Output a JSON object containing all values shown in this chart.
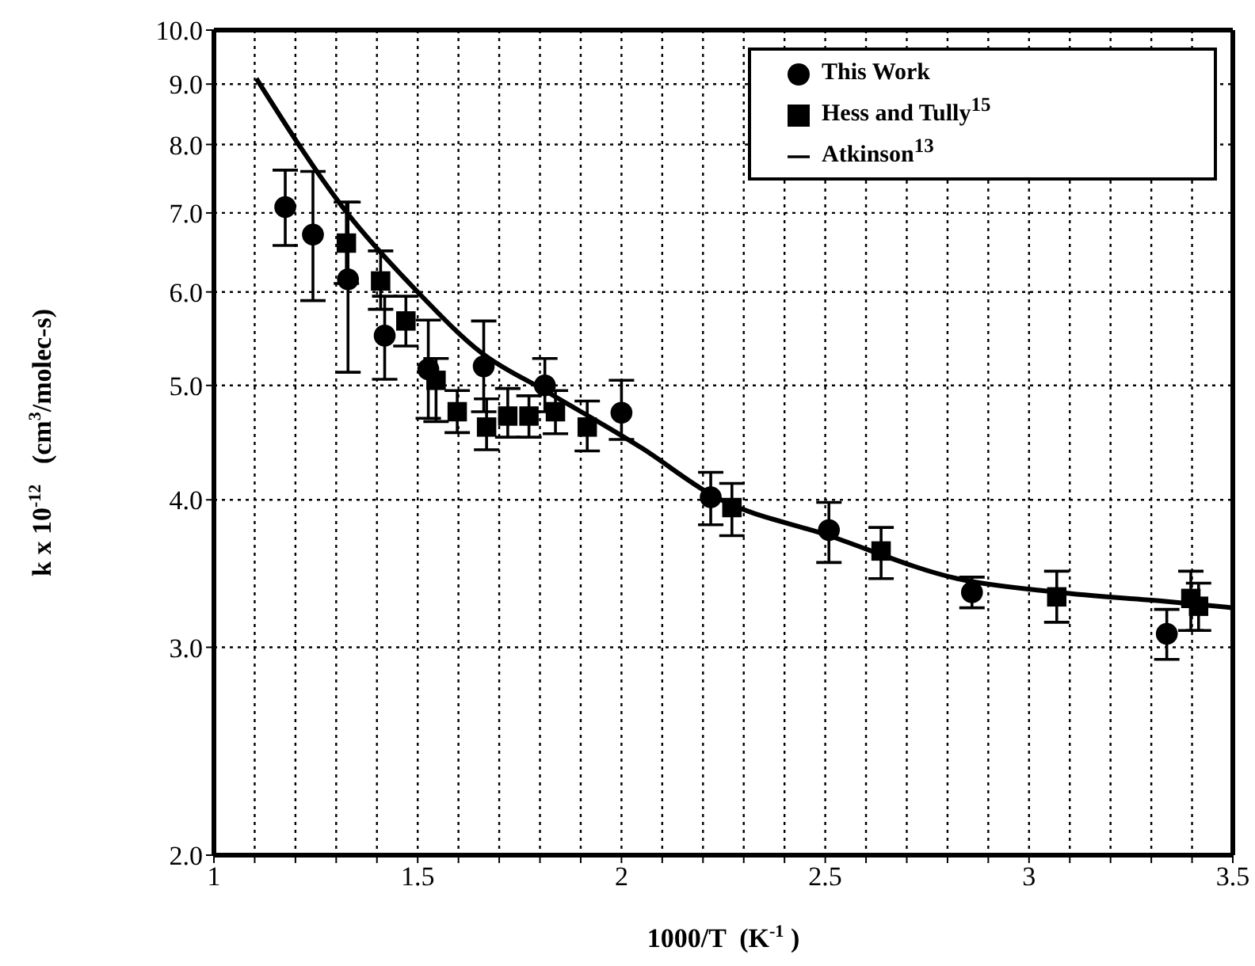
{
  "chart_data": {
    "type": "scatter",
    "xlabel": "1000/T  (K$^{-1}$ )",
    "ylabel": "k x 10$^{-12}$   (cm$^{3}$/molec-s)",
    "log": "y",
    "grid": true,
    "legend": "top right",
    "xlim": [
      1,
      3.5
    ],
    "ylim": [
      2,
      10
    ],
    "xticks": [
      1,
      {
        "value": 1.1,
        "label": null
      },
      {
        "value": 1.2,
        "label": null
      },
      {
        "value": 1.3,
        "label": null
      },
      {
        "value": 1.4,
        "label": null
      },
      1.5,
      {
        "value": 1.6,
        "label": null
      },
      {
        "value": 1.7,
        "label": null
      },
      {
        "value": 1.8,
        "label": null
      },
      {
        "value": 1.9,
        "label": null
      },
      2,
      {
        "value": 2.1,
        "label": null
      },
      {
        "value": 2.2,
        "label": null
      },
      {
        "value": 2.3,
        "label": null
      },
      {
        "value": 2.4,
        "label": null
      },
      2.5,
      {
        "value": 2.6,
        "label": null
      },
      {
        "value": 2.7,
        "label": null
      },
      {
        "value": 2.8,
        "label": null
      },
      {
        "value": 2.9,
        "label": null
      },
      3,
      {
        "value": 3.1,
        "label": null
      },
      {
        "value": 3.2,
        "label": null
      },
      {
        "value": 3.3,
        "label": null
      },
      {
        "value": 3.4,
        "label": null
      },
      3.5
    ],
    "yticks": [
      {
        "value": 2,
        "label": "2.0"
      },
      {
        "value": 3,
        "label": "3.0"
      },
      {
        "value": 4,
        "label": "4.0"
      },
      {
        "value": 5,
        "label": "5.0"
      },
      {
        "value": 6,
        "label": "6.0"
      },
      {
        "value": 7,
        "label": "7.0"
      },
      {
        "value": 8,
        "label": "8.0"
      },
      {
        "value": 9,
        "label": "9.0"
      },
      {
        "value": 10,
        "label": "10.0"
      }
    ],
    "series": [
      {
        "name": "This Work",
        "type": "scatter",
        "marker": "circle",
        "color": "#000000",
        "x": [
          1.175,
          1.243,
          1.329,
          1.419,
          1.526,
          1.662,
          1.812,
          2.0,
          2.219,
          2.509,
          2.86,
          3.338
        ],
        "values": [
          7.08,
          6.71,
          6.15,
          5.51,
          5.16,
          5.19,
          5.0,
          4.74,
          4.02,
          3.77,
          3.34,
          3.08
        ],
        "errors": [
          [
            6.57,
            7.61
          ],
          [
            5.9,
            7.59
          ],
          [
            5.13,
            7.15
          ],
          [
            5.06,
            5.95
          ],
          [
            4.69,
            5.68
          ],
          [
            4.75,
            5.67
          ],
          [
            4.75,
            5.27
          ],
          [
            4.5,
            5.05
          ],
          [
            3.81,
            4.22
          ],
          [
            3.54,
            3.98
          ],
          [
            3.24,
            3.44
          ],
          [
            2.93,
            3.23
          ]
        ]
      },
      {
        "name": "Hess and Tully$^{15}$",
        "marker": "square",
        "color": "#000000",
        "x": [
          1.325,
          1.409,
          1.471,
          1.545,
          1.597,
          1.669,
          1.721,
          1.773,
          1.838,
          1.916,
          2.271,
          2.637,
          3.068,
          3.397,
          3.416
        ],
        "values": [
          6.6,
          6.13,
          5.67,
          5.05,
          4.75,
          4.61,
          4.71,
          4.71,
          4.75,
          4.61,
          3.94,
          3.62,
          3.31,
          3.3,
          3.25
        ],
        "errors": [
          [
            6.1,
            7.15
          ],
          [
            5.8,
            6.5
          ],
          [
            5.4,
            5.95
          ],
          [
            4.66,
            5.27
          ],
          [
            4.56,
            4.95
          ],
          [
            4.41,
            4.87
          ],
          [
            4.52,
            4.97
          ],
          [
            4.52,
            4.9
          ],
          [
            4.55,
            4.95
          ],
          [
            4.4,
            4.85
          ],
          [
            3.73,
            4.13
          ],
          [
            3.43,
            3.79
          ],
          [
            3.15,
            3.48
          ],
          [
            3.1,
            3.48
          ],
          [
            3.1,
            3.4
          ]
        ]
      },
      {
        "name": "Atkinson$^{13}$",
        "type": "line",
        "marker": "none",
        "line_style": "solid",
        "color": "#000000",
        "x": [
          1.104,
          1.331,
          1.5,
          1.656,
          1.812,
          2.052,
          2.226,
          2.509,
          2.824,
          3.069,
          3.34,
          3.5
        ],
        "values": [
          9.1,
          6.97,
          6.0,
          5.33,
          4.95,
          4.42,
          4.03,
          3.73,
          3.43,
          3.34,
          3.28,
          3.24
        ]
      }
    ]
  }
}
